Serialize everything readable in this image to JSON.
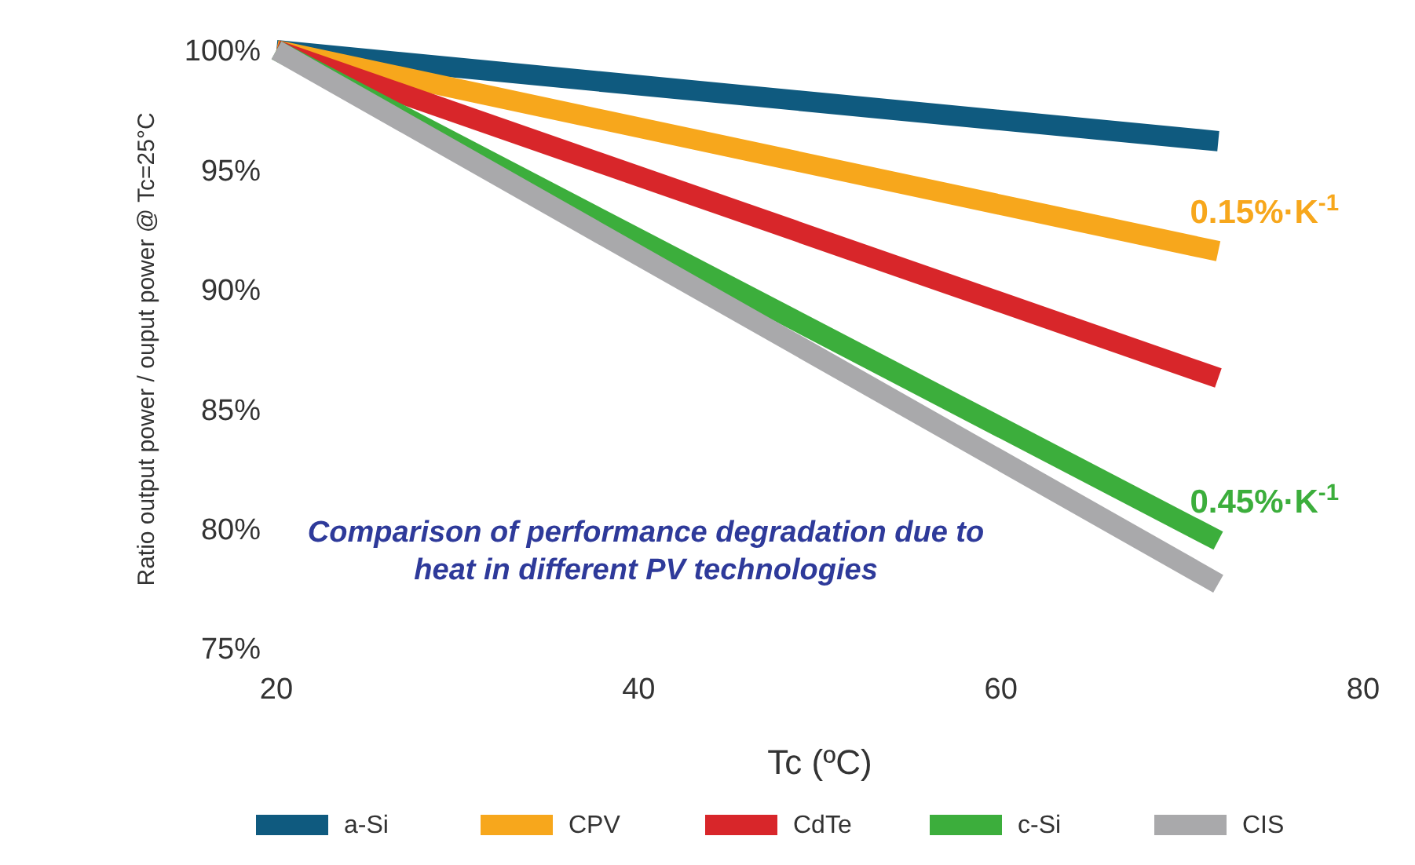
{
  "chart_data": {
    "type": "line",
    "xlabel": "Tc (ºC)",
    "ylabel": "Ratio output power / ouput power @ Tc=25°C",
    "xlim": [
      20,
      80
    ],
    "xticks": [
      20,
      40,
      60,
      80
    ],
    "ylim": [
      75,
      100
    ],
    "yticks": [
      {
        "value": 75,
        "label": "75%"
      },
      {
        "value": 80,
        "label": "80%"
      },
      {
        "value": 85,
        "label": "85%"
      },
      {
        "value": 90,
        "label": "90%"
      },
      {
        "value": 95,
        "label": "95%"
      },
      {
        "value": 100,
        "label": "100%"
      }
    ],
    "x": [
      20,
      72
    ],
    "grid": false,
    "legend": "bottom",
    "marker": "none",
    "line_style": "solid",
    "series": [
      {
        "name": "a-Si",
        "color": "#0f5a7f",
        "values": [
          100,
          96.2
        ]
      },
      {
        "name": "CPV",
        "color": "#f7a71c",
        "values": [
          100,
          91.6
        ]
      },
      {
        "name": "CdTe",
        "color": "#d8262a",
        "values": [
          100,
          86.3
        ]
      },
      {
        "name": "c-Si",
        "color": "#3cae3c",
        "values": [
          100,
          79.5
        ]
      },
      {
        "name": "CIS",
        "color": "#a9a9ab",
        "values": [
          100,
          77.7
        ]
      }
    ],
    "annotations": [
      "Comparison of performance degradation due to heat in different PV technologies",
      "0.15%·K$^{-1}$",
      "0.45%·K$^{-1}$"
    ]
  }
}
